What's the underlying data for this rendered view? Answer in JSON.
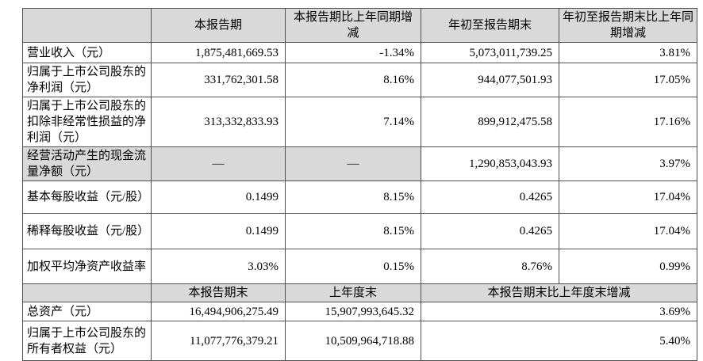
{
  "table": {
    "top_header": [
      "",
      "本报告期",
      "本报告期比上年同期增减",
      "年初至报告期末",
      "年初至报告期末比上年同期增减"
    ],
    "body_rows": [
      {
        "label": "营业收入（元）",
        "values": [
          "1,875,481,669.53",
          "-1.34%",
          "5,073,011,739.25",
          "3.81%"
        ]
      },
      {
        "label": "归属于上市公司股东的净利润（元）",
        "values": [
          "331,762,301.58",
          "8.16%",
          "944,077,501.93",
          "17.05%"
        ]
      },
      {
        "label": "归属于上市公司股东的扣除非经常性损益的净利润（元）",
        "values": [
          "313,332,833.93",
          "7.14%",
          "899,912,475.58",
          "17.16%"
        ]
      },
      {
        "label": "经营活动产生的现金流量净额（元）",
        "values": [
          "—",
          "—",
          "1,290,853,043.93",
          "3.97%"
        ],
        "shaded_cells": [
          0,
          1,
          2
        ]
      },
      {
        "label": "基本每股收益（元/股）",
        "values": [
          "0.1499",
          "8.15%",
          "0.4265",
          "17.04%"
        ]
      },
      {
        "label": "稀释每股收益（元/股）",
        "values": [
          "0.1499",
          "8.15%",
          "0.4265",
          "17.04%"
        ]
      },
      {
        "label": "加权平均净资产收益率",
        "values": [
          "3.03%",
          "0.15%",
          "8.76%",
          "0.99%"
        ]
      }
    ],
    "bottom_header": [
      "",
      "本报告期末",
      "上年度末",
      "本报告期末比上年度末增减"
    ],
    "bottom_rows": [
      {
        "label": "总资产（元）",
        "values": [
          "16,494,906,275.49",
          "15,907,993,645.32",
          "3.69%"
        ]
      },
      {
        "label": "归属于上市公司股东的所有者权益（元）",
        "values": [
          "11,077,776,379.21",
          "10,509,964,718.88",
          "5.40%"
        ]
      }
    ],
    "colors": {
      "header_bg": "#d9d9d9",
      "shaded_cell_bg": "#d9d9d9",
      "border": "#505050",
      "text": "#000000",
      "body_bg": "#ffffff"
    }
  }
}
